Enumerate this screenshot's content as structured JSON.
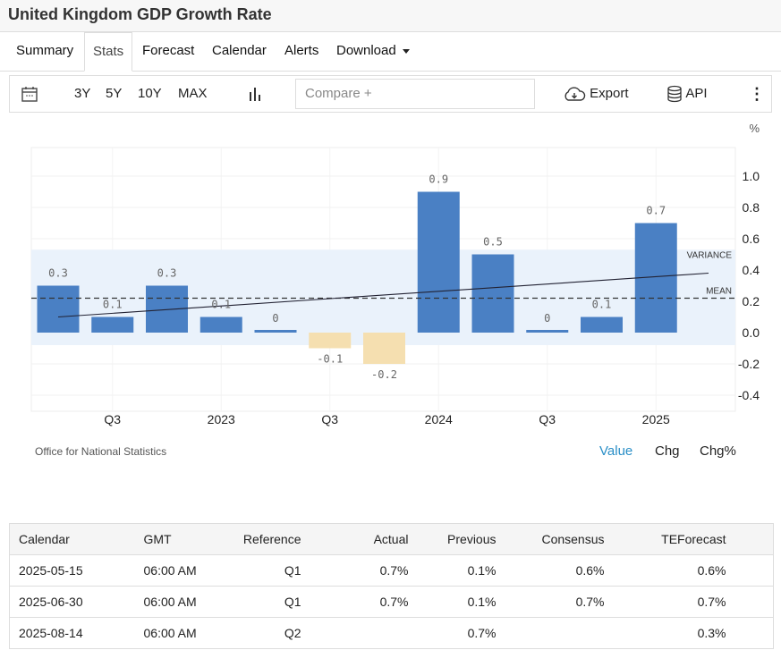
{
  "title": "United Kingdom GDP Growth Rate",
  "tabs": [
    "Summary",
    "Stats",
    "Forecast",
    "Calendar",
    "Alerts",
    "Download"
  ],
  "toolbar": {
    "ranges": [
      "3Y",
      "5Y",
      "10Y",
      "MAX"
    ],
    "compare_placeholder": "Compare +",
    "export": "Export",
    "api": "API"
  },
  "source": "Office for National Statistics",
  "value_tabs": [
    "Value",
    "Chg",
    "Chg%"
  ],
  "colors": {
    "positive": "#4a80c4",
    "negative": "#f5dfb0",
    "accent": "#2a8fc7"
  },
  "chart_data": {
    "type": "bar",
    "unit": "%",
    "values": [
      0.3,
      0.1,
      0.3,
      0.1,
      0,
      -0.1,
      -0.2,
      0.9,
      0.5,
      0,
      0.1,
      0.7
    ],
    "labels": [
      "0.3",
      "0.1",
      "0.3",
      "0.1",
      "0",
      "-0.1",
      "-0.2",
      "0.9",
      "0.5",
      "0",
      "0.1",
      "0.7"
    ],
    "x_ticks": [
      {
        "index": 1,
        "label": "Q3"
      },
      {
        "index": 3,
        "label": "2023"
      },
      {
        "index": 5,
        "label": "Q3"
      },
      {
        "index": 7,
        "label": "2024"
      },
      {
        "index": 9,
        "label": "Q3"
      },
      {
        "index": 11,
        "label": "2025"
      }
    ],
    "y_ticks": [
      "1.0",
      "0.8",
      "0.6",
      "0.4",
      "0.2",
      "0.0",
      "-0.2",
      "-0.4"
    ],
    "y_tick_values": [
      1.0,
      0.8,
      0.6,
      0.4,
      0.2,
      0.0,
      -0.2,
      -0.4
    ],
    "ylim": [
      -0.5,
      1.2
    ],
    "mean": 0.22,
    "mean_label": "MEAN",
    "variance_band": [
      -0.08,
      0.53
    ],
    "variance_label": "VARIANCE",
    "trend": [
      0.1,
      0.38
    ]
  },
  "table": {
    "headers": [
      "Calendar",
      "GMT",
      "Reference",
      "Actual",
      "Previous",
      "Consensus",
      "TEForecast"
    ],
    "rows": [
      [
        "2025-05-15",
        "06:00 AM",
        "Q1",
        "0.7%",
        "0.1%",
        "0.6%",
        "0.6%"
      ],
      [
        "2025-06-30",
        "06:00 AM",
        "Q1",
        "0.7%",
        "0.1%",
        "0.7%",
        "0.7%"
      ],
      [
        "2025-08-14",
        "06:00 AM",
        "Q2",
        "",
        "0.7%",
        "",
        "0.3%"
      ]
    ]
  }
}
